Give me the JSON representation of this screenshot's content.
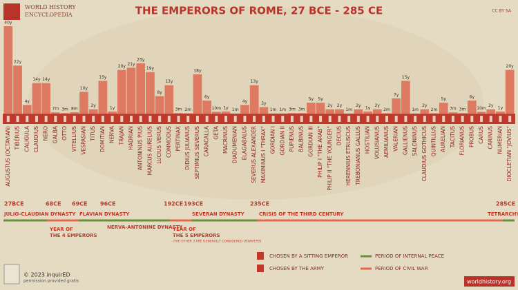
{
  "header": {
    "brand_line1": "WORLD HISTORY",
    "brand_line2": "ENCYCLOPEDIA",
    "license": "CC BY SA"
  },
  "chart_data": {
    "type": "bar",
    "title": "THE EMPERORS OF ROME, 27 BCE - 285 CE",
    "color": "#df7a62",
    "categories": [
      "AUGUSTUS (OCTAVIAN)",
      "TIBERIUS",
      "CALIGULA",
      "CLAUDIUS",
      "NERO",
      "GALBA",
      "OTTO",
      "VITELLIUS",
      "VESPASIAN",
      "TITUS",
      "DOMITIAN",
      "NERVA",
      "TRAJAN",
      "HADRIAN",
      "ANTONINUS PIUS",
      "MARCUS AURELIUS",
      "LUCIUS VERUS",
      "COMMODUS",
      "PERTINAX",
      "DIDIUS JULIANUS",
      "SEPTIMIUS SEVERUS",
      "CARACALLA",
      "GETA",
      "MACRINUS",
      "DIADUMENIAN",
      "ELAGABALUS",
      "SEVERUS ALEXANDER",
      "MAXIMINUS I \"THRAX\"",
      "GORDIAN I",
      "GORDIAN II",
      "PUPIENUS",
      "BALBINUS",
      "GORDIAN III",
      "PHILIP I \"THE ARAB\"",
      "PHILIP II \"THE YOUNGER\"",
      "DECIUS",
      "HERENNIUS ETRUSCUS",
      "TREBONIANUS GALLUS",
      "HOSTILIAN",
      "VOLUSIANUS",
      "AEMILIANUS",
      "VALERIAN",
      "GALLIENUS",
      "SALONINUS",
      "CLAUDIUS GOTHICUS",
      "QUINTILLUS",
      "AURELIAN",
      "TACITUS",
      "FLORIANUS",
      "PROBUS",
      "CARUS",
      "CARINUS",
      "NUMERIAN",
      "DIOCLETIAN \"JOVIUS\""
    ],
    "values": [
      40,
      22,
      4,
      14,
      14,
      0.58,
      0.25,
      0.67,
      10,
      2,
      15,
      1,
      20,
      21,
      23,
      19,
      8,
      13,
      0.25,
      0.17,
      18,
      6,
      0.83,
      1,
      0.08,
      4,
      13,
      3,
      0.08,
      0.08,
      0.25,
      0.25,
      5,
      5,
      2,
      2,
      0.08,
      2,
      1,
      2,
      0.17,
      7,
      15,
      0.08,
      2,
      0.17,
      5,
      0.58,
      0.25,
      6,
      0.83,
      2,
      1,
      20
    ],
    "value_labels": [
      "40y",
      "22y",
      "4y",
      "14y",
      "14y",
      "7m",
      "3m",
      "8m",
      "10y",
      "2y",
      "15y",
      "1y",
      "20y",
      "21y",
      "23y",
      "19y",
      "8y",
      "13y",
      "3m",
      "2m",
      "18y",
      "6y",
      "10m",
      "1y",
      "1m",
      "4y",
      "13y",
      "3y",
      "1m",
      "1m",
      "3m",
      "3m",
      "5y",
      "5y",
      "2y",
      "2y",
      "1m",
      "2y",
      "1y",
      "2y",
      "2m",
      "7y",
      "15y",
      "1m",
      "2y",
      "2m",
      "5y",
      "7m",
      "3m",
      "6y",
      "10m",
      "2y",
      "1y",
      "20y"
    ]
  },
  "timeline": {
    "dates": [
      "27BCE",
      "68CE",
      "69CE",
      "96CE",
      "192CE",
      "193CE",
      "235CE",
      "285CE"
    ],
    "periods": [
      "JULIO-CLAUDIAN DYNASTY",
      "FLAVIAN DYNASTY",
      "NERVA-ANTONINE DYNASTY",
      "SEVERAN DYNASTY",
      "CRISIS OF THE THIRD CENTURY",
      "TETRARCHY"
    ],
    "year_of_4": [
      "YEAR OF",
      "THE 4 EMPERORS"
    ],
    "year_of_5": [
      "YEAR OF",
      "THE 5 EMPERORS"
    ],
    "usurpers_note": "(THE OTHER 3 ARE GENERALLY CONSIDERED USURPERS)"
  },
  "legend": [
    "CHOSEN BY A SITTING EMPEROR",
    "CHOSEN BY THE ARMY",
    "PERIOD OF INTERNAL PEACE",
    "PERIOD OF CIVIL WAR"
  ],
  "footer": {
    "copyright": "© 2023 inquirED",
    "permission": "permission provided gratis",
    "site": "worldhistory.org"
  }
}
